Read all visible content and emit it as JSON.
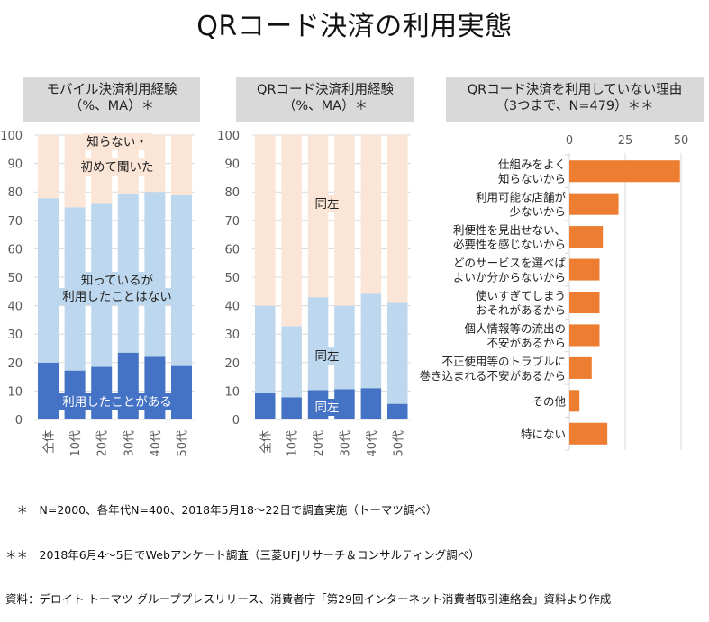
{
  "page": {
    "title": "QRコード決済の利用実態"
  },
  "notes": [
    "　＊　N=2000、各年代N=400、2018年5月18～22日で調査実施（トーマツ調べ）",
    "＊＊　2018年6月4～5日でWebアンケート調査（三菱UFJリサーチ＆コンサルティング調べ）",
    "資料：デロイト トーマツ グループプレスリリース、消費者庁「第29回インターネット消費者取引連絡会」資料より作成"
  ],
  "colors": {
    "used": "#4472c4",
    "known": "#bdd7ee",
    "unknown": "#fbe5d6",
    "reasons": "#ed7d31",
    "grid": "#d9d9d9",
    "header_bg": "#d9d9d9"
  },
  "chart_data": [
    {
      "type": "bar",
      "stacked": true,
      "title": "モバイル決済利用経験\n（%、MA）＊",
      "title_lines": [
        "モバイル決済利用経験",
        "（%、MA）＊"
      ],
      "categories": [
        "全体",
        "10代",
        "20代",
        "30代",
        "40代",
        "50代"
      ],
      "series": [
        {
          "name": "利用したことがある",
          "values": [
            20.0,
            17.2,
            18.5,
            23.5,
            22.0,
            18.8
          ]
        },
        {
          "name": "知っているが利用したことはない",
          "values": [
            57.8,
            57.4,
            57.3,
            55.9,
            58.0,
            60.0
          ]
        },
        {
          "name": "知らない・初めて聞いた",
          "values": [
            22.2,
            25.4,
            24.2,
            20.6,
            20.0,
            21.2
          ]
        }
      ],
      "annotations": [
        {
          "series": 2,
          "lines": [
            "知らない・",
            "初めて聞いた"
          ]
        },
        {
          "series": 1,
          "lines": [
            "知っているが",
            "利用したことはない"
          ]
        },
        {
          "series": 0,
          "lines": [
            "利用したことがある"
          ]
        }
      ],
      "ylim": [
        0,
        100
      ],
      "yticks": [
        0,
        10,
        20,
        30,
        40,
        50,
        60,
        70,
        80,
        90,
        100
      ],
      "xlabel": "",
      "ylabel": "",
      "grid": true
    },
    {
      "type": "bar",
      "stacked": true,
      "title": "QRコード決済利用経験\n（%、MA）＊",
      "title_lines": [
        "QRコード決済利用経験",
        "（%、MA）＊"
      ],
      "categories": [
        "全体",
        "10代",
        "20代",
        "30代",
        "40代",
        "50代"
      ],
      "series": [
        {
          "name": "利用したことがある",
          "values": [
            9.2,
            7.8,
            10.3,
            10.6,
            11.0,
            5.5
          ]
        },
        {
          "name": "知っているが利用したことはない",
          "values": [
            30.8,
            25.0,
            32.7,
            29.4,
            33.2,
            35.5
          ]
        },
        {
          "name": "知らない・初めて聞いた",
          "values": [
            60.0,
            67.2,
            57.0,
            60.0,
            55.8,
            59.0
          ]
        }
      ],
      "annotations": [
        {
          "series": 2,
          "lines": [
            "同左"
          ]
        },
        {
          "series": 1,
          "lines": [
            "同左"
          ]
        },
        {
          "series": 0,
          "lines": [
            "同左"
          ]
        }
      ],
      "ylim": [
        0,
        100
      ],
      "yticks": [
        0,
        10,
        20,
        30,
        40,
        50,
        60,
        70,
        80,
        90,
        100
      ],
      "xlabel": "",
      "ylabel": "",
      "grid": true
    },
    {
      "type": "bar",
      "orientation": "horizontal",
      "title": "QRコード決済を利用していない理由\n（3つまで、N=479）＊＊",
      "title_lines": [
        "QRコード決済を利用していない理由",
        "（3つまで、N=479）＊＊"
      ],
      "categories": [
        [
          "仕組みをよく",
          "知らないから"
        ],
        [
          "利用可能な店舗が",
          "少ないから"
        ],
        [
          "利便性を見出せない、",
          "必要性を感じないから"
        ],
        [
          "どのサービスを選べば",
          "よいか分からないから"
        ],
        [
          "使いすぎてしまう",
          "おそれがあるから"
        ],
        [
          "個人情報等の流出の",
          "不安があるから"
        ],
        [
          "不正使用等のトラブルに",
          "巻き込まれる不安があるから"
        ],
        [
          "その他"
        ],
        [
          "特にない"
        ]
      ],
      "values": [
        49.5,
        22.0,
        15.0,
        13.5,
        13.5,
        13.5,
        10.0,
        4.5,
        17.0
      ],
      "xlim": [
        0,
        50
      ],
      "xticks": [
        0,
        25,
        50
      ],
      "xlabel": "",
      "ylabel": "",
      "grid": true
    }
  ]
}
